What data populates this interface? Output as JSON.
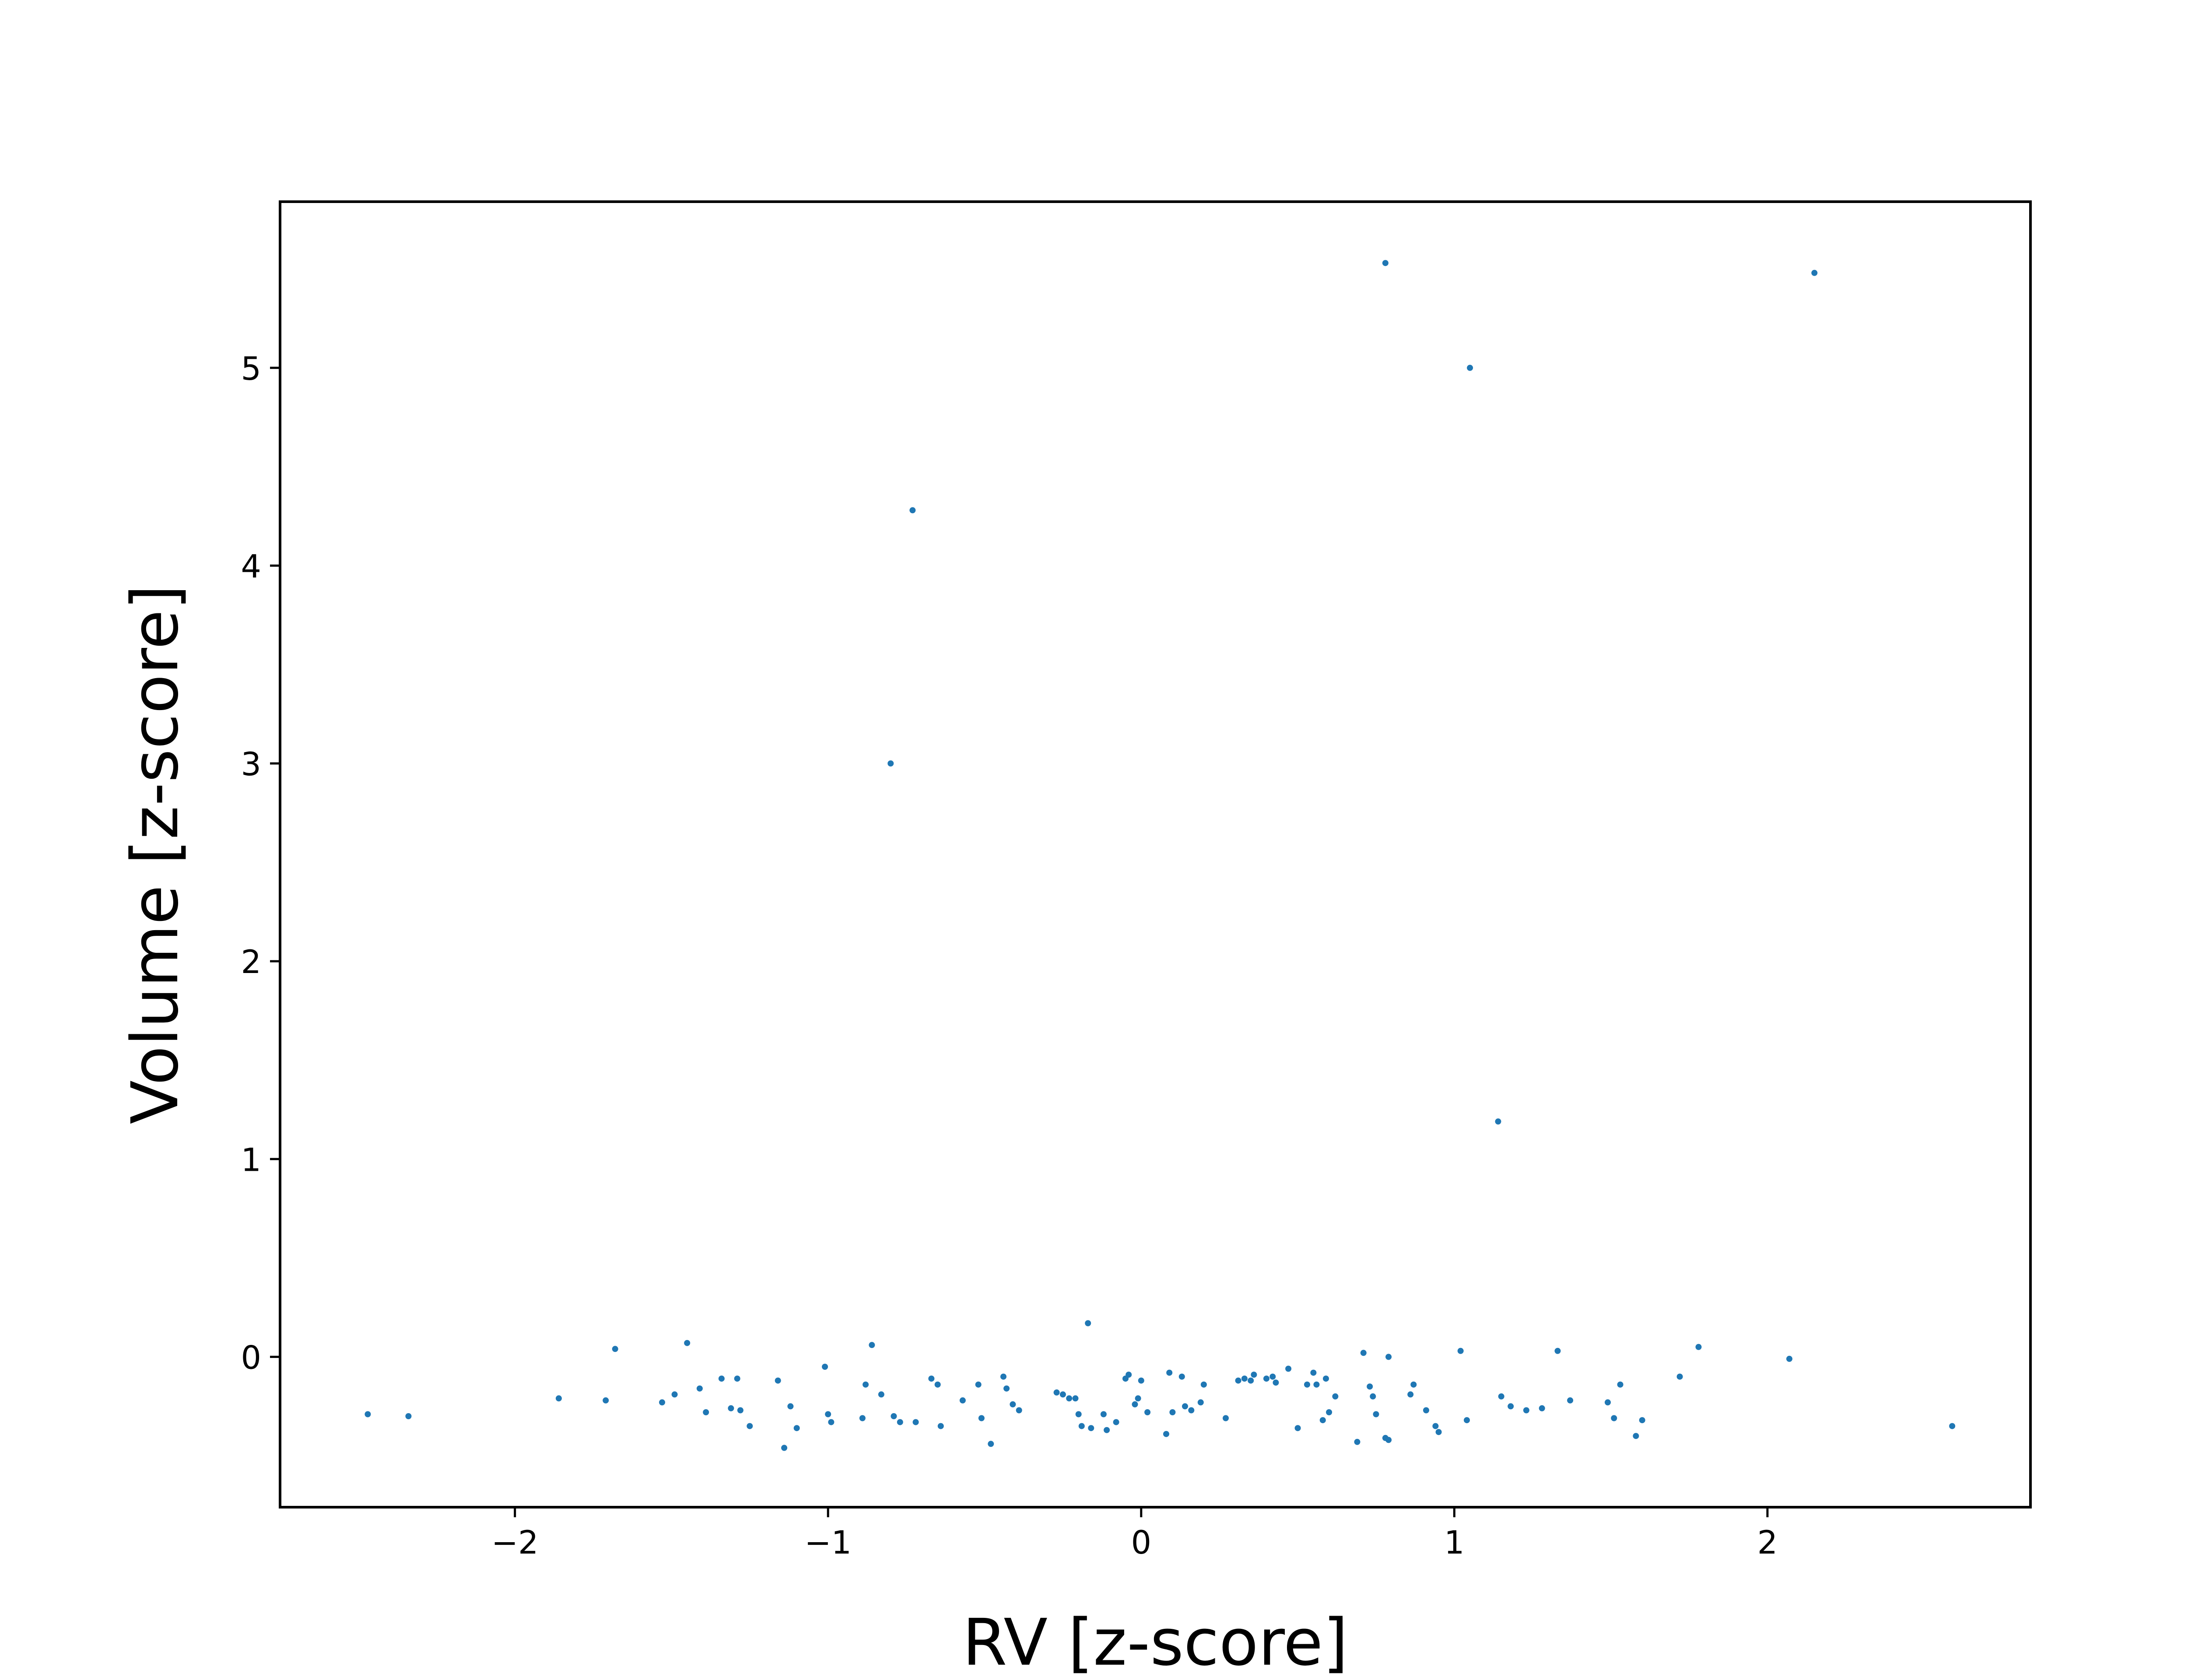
{
  "chart_data": {
    "type": "scatter",
    "xlabel": "RV [z-score]",
    "ylabel": "Volume [z-score]",
    "xlim": [
      -2.75,
      2.84
    ],
    "ylim": [
      -0.76,
      5.84
    ],
    "xticks": [
      {
        "value": -2,
        "label": "−2"
      },
      {
        "value": -1,
        "label": "−1"
      },
      {
        "value": 0,
        "label": "0"
      },
      {
        "value": 1,
        "label": "1"
      },
      {
        "value": 2,
        "label": "2"
      }
    ],
    "yticks": [
      {
        "value": 0,
        "label": "0"
      },
      {
        "value": 1,
        "label": "1"
      },
      {
        "value": 2,
        "label": "2"
      },
      {
        "value": 3,
        "label": "3"
      },
      {
        "value": 4,
        "label": "4"
      },
      {
        "value": 5,
        "label": "5"
      }
    ],
    "grid": false,
    "marker_color": "#1f77b4",
    "points": [
      [
        0.78,
        5.53
      ],
      [
        2.15,
        5.48
      ],
      [
        1.05,
        5.0
      ],
      [
        -0.73,
        4.28
      ],
      [
        -0.8,
        3.0
      ],
      [
        1.14,
        1.19
      ],
      [
        -2.47,
        -0.29
      ],
      [
        -2.34,
        -0.3
      ],
      [
        -1.86,
        -0.21
      ],
      [
        -1.71,
        -0.22
      ],
      [
        -1.68,
        0.04
      ],
      [
        -1.53,
        -0.23
      ],
      [
        -1.49,
        -0.19
      ],
      [
        -1.45,
        0.07
      ],
      [
        -1.41,
        -0.16
      ],
      [
        -1.39,
        -0.28
      ],
      [
        -1.34,
        -0.11
      ],
      [
        -1.31,
        -0.26
      ],
      [
        -1.29,
        -0.11
      ],
      [
        -1.28,
        -0.27
      ],
      [
        -1.25,
        -0.35
      ],
      [
        -1.16,
        -0.12
      ],
      [
        -1.14,
        -0.46
      ],
      [
        -1.12,
        -0.25
      ],
      [
        -1.1,
        -0.36
      ],
      [
        -1.01,
        -0.05
      ],
      [
        -1.0,
        -0.29
      ],
      [
        -0.99,
        -0.33
      ],
      [
        -0.89,
        -0.31
      ],
      [
        -0.88,
        -0.14
      ],
      [
        -0.86,
        0.06
      ],
      [
        -0.83,
        -0.19
      ],
      [
        -0.79,
        -0.3
      ],
      [
        -0.77,
        -0.33
      ],
      [
        -0.72,
        -0.33
      ],
      [
        -0.67,
        -0.11
      ],
      [
        -0.65,
        -0.14
      ],
      [
        -0.64,
        -0.35
      ],
      [
        -0.57,
        -0.22
      ],
      [
        -0.52,
        -0.14
      ],
      [
        -0.51,
        -0.31
      ],
      [
        -0.48,
        -0.44
      ],
      [
        -0.44,
        -0.1
      ],
      [
        -0.43,
        -0.16
      ],
      [
        -0.41,
        -0.24
      ],
      [
        -0.39,
        -0.27
      ],
      [
        -0.27,
        -0.18
      ],
      [
        -0.25,
        -0.19
      ],
      [
        -0.23,
        -0.21
      ],
      [
        -0.21,
        -0.21
      ],
      [
        -0.2,
        -0.29
      ],
      [
        -0.19,
        -0.35
      ],
      [
        -0.17,
        0.17
      ],
      [
        -0.16,
        -0.36
      ],
      [
        -0.12,
        -0.29
      ],
      [
        -0.11,
        -0.37
      ],
      [
        -0.08,
        -0.33
      ],
      [
        -0.05,
        -0.11
      ],
      [
        -0.04,
        -0.09
      ],
      [
        -0.02,
        -0.24
      ],
      [
        -0.01,
        -0.21
      ],
      [
        0.0,
        -0.12
      ],
      [
        0.02,
        -0.28
      ],
      [
        0.08,
        -0.39
      ],
      [
        0.09,
        -0.08
      ],
      [
        0.1,
        -0.28
      ],
      [
        0.13,
        -0.1
      ],
      [
        0.14,
        -0.25
      ],
      [
        0.16,
        -0.27
      ],
      [
        0.19,
        -0.23
      ],
      [
        0.2,
        -0.14
      ],
      [
        0.27,
        -0.31
      ],
      [
        0.31,
        -0.12
      ],
      [
        0.33,
        -0.11
      ],
      [
        0.35,
        -0.12
      ],
      [
        0.36,
        -0.09
      ],
      [
        0.4,
        -0.11
      ],
      [
        0.42,
        -0.1
      ],
      [
        0.43,
        -0.13
      ],
      [
        0.47,
        -0.06
      ],
      [
        0.5,
        -0.36
      ],
      [
        0.53,
        -0.14
      ],
      [
        0.55,
        -0.08
      ],
      [
        0.56,
        -0.14
      ],
      [
        0.58,
        -0.32
      ],
      [
        0.59,
        -0.11
      ],
      [
        0.6,
        -0.28
      ],
      [
        0.62,
        -0.2
      ],
      [
        0.69,
        -0.43
      ],
      [
        0.71,
        0.02
      ],
      [
        0.73,
        -0.15
      ],
      [
        0.74,
        -0.2
      ],
      [
        0.75,
        -0.29
      ],
      [
        0.78,
        -0.41
      ],
      [
        0.79,
        -0.42
      ],
      [
        0.79,
        0.0
      ],
      [
        0.86,
        -0.19
      ],
      [
        0.87,
        -0.14
      ],
      [
        0.91,
        -0.27
      ],
      [
        0.94,
        -0.35
      ],
      [
        0.95,
        -0.38
      ],
      [
        1.02,
        0.03
      ],
      [
        1.04,
        -0.32
      ],
      [
        1.15,
        -0.2
      ],
      [
        1.18,
        -0.25
      ],
      [
        1.23,
        -0.27
      ],
      [
        1.28,
        -0.26
      ],
      [
        1.33,
        0.03
      ],
      [
        1.37,
        -0.22
      ],
      [
        1.49,
        -0.23
      ],
      [
        1.51,
        -0.31
      ],
      [
        1.53,
        -0.14
      ],
      [
        1.58,
        -0.4
      ],
      [
        1.6,
        -0.32
      ],
      [
        1.72,
        -0.1
      ],
      [
        1.78,
        0.05
      ],
      [
        2.07,
        -0.01
      ],
      [
        2.59,
        -0.35
      ]
    ]
  }
}
